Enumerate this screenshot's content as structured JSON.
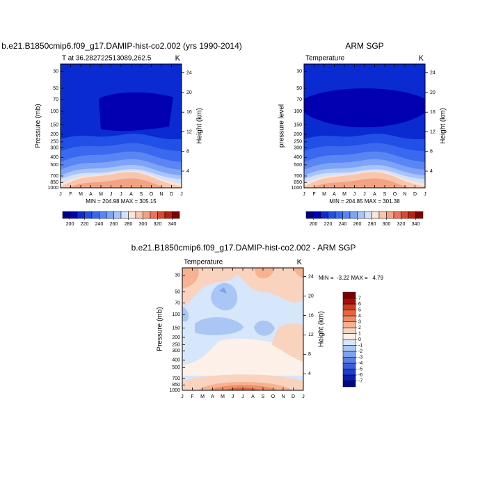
{
  "chart_data": [
    {
      "type": "contour",
      "title": "b.e21.B1850cmip6.f09_g17.DAMIP-hist-co2.002 (yrs 1990-2014)",
      "left_string": "T at 36.282722513089,262.5",
      "right_string": "K",
      "ylabel": "Pressure (mb)",
      "y2label": "Height (km)",
      "categories": [
        "J",
        "F",
        "M",
        "A",
        "M",
        "J",
        "J",
        "A",
        "S",
        "O",
        "N",
        "D",
        "J"
      ],
      "ylim": [
        1000,
        24
      ],
      "log_scale": true,
      "yticks": [
        30,
        50,
        70,
        100,
        150,
        200,
        250,
        300,
        400,
        500,
        700,
        850,
        1000
      ],
      "y2lim": [
        0.6,
        25.8
      ],
      "y2ticks": [
        4,
        8,
        12,
        16,
        20,
        24
      ],
      "stats": "MIN = 204.98 MAX = 305.15",
      "colorbar": {
        "orientation": "horizontal",
        "lim": [
          190,
          350
        ],
        "ticks": [
          200,
          220,
          240,
          260,
          280,
          300,
          320,
          340
        ],
        "colors": [
          "#00007f",
          "#0000b0",
          "#0a2bd1",
          "#2050e6",
          "#3a68ee",
          "#5a86f4",
          "#7ea4f7",
          "#a8c4fa",
          "#d2e2fc",
          "#fbe4d6",
          "#f8c6ad",
          "#f3a283",
          "#e8755a",
          "#d84a30",
          "#b8200f",
          "#820000"
        ]
      }
    },
    {
      "type": "contour",
      "title": "ARM SGP",
      "left_string": "Temperature",
      "right_string": "K",
      "ylabel": "pressure level",
      "y2label": "Height (km)",
      "categories": [
        "J",
        "F",
        "M",
        "A",
        "M",
        "J",
        "J",
        "A",
        "S",
        "O",
        "N",
        "D",
        "J"
      ],
      "ylim": [
        1000,
        24
      ],
      "log_scale": true,
      "yticks": [
        30,
        50,
        70,
        100,
        150,
        200,
        250,
        300,
        400,
        500,
        700,
        850,
        1000
      ],
      "y2lim": [
        0.6,
        25.8
      ],
      "y2ticks": [
        4,
        8,
        12,
        16,
        20,
        24
      ],
      "stats": "MIN = 204.85 MAX = 301.38",
      "colorbar": {
        "orientation": "horizontal",
        "lim": [
          190,
          350
        ],
        "ticks": [
          200,
          220,
          240,
          260,
          280,
          300,
          320,
          340
        ],
        "colors": [
          "#00007f",
          "#0000b0",
          "#0a2bd1",
          "#2050e6",
          "#3a68ee",
          "#5a86f4",
          "#7ea4f7",
          "#a8c4fa",
          "#d2e2fc",
          "#fbe4d6",
          "#f8c6ad",
          "#f3a283",
          "#e8755a",
          "#d84a30",
          "#b8200f",
          "#820000"
        ]
      }
    },
    {
      "type": "contour-diff",
      "title": "b.e21.B1850cmip6.f09_g17.DAMIP-hist-co2.002 - ARM SGP",
      "left_string": "Temperature",
      "right_string": "K",
      "ylabel": "Pressure (mb)",
      "y2label": "Height (km)",
      "categories": [
        "J",
        "F",
        "M",
        "A",
        "M",
        "J",
        "J",
        "A",
        "S",
        "O",
        "N",
        "D",
        "J"
      ],
      "ylim": [
        1000,
        24
      ],
      "log_scale": true,
      "yticks": [
        30,
        50,
        70,
        100,
        150,
        200,
        250,
        300,
        400,
        500,
        700,
        850,
        1000
      ],
      "y2lim": [
        0.6,
        25.8
      ],
      "y2ticks": [
        4,
        8,
        12,
        16,
        20,
        24
      ],
      "stats": "MIN =  -3.22 MAX =   4.79",
      "colorbar": {
        "orientation": "vertical",
        "lim": [
          -8,
          8
        ],
        "ticks": [
          -7,
          -6,
          -5,
          -4,
          -3,
          -2,
          -1,
          0,
          1,
          2,
          3,
          4,
          5,
          6,
          7
        ],
        "colors": [
          "#000a80",
          "#0a1eb0",
          "#1e3ecc",
          "#3a5ede",
          "#5a80e6",
          "#7ea2ee",
          "#aac6f4",
          "#d6e6fb",
          "#fdf0e8",
          "#fad3bf",
          "#f7b292",
          "#f28c64",
          "#e8643c",
          "#d23a1e",
          "#a80c0c",
          "#7a0000"
        ]
      }
    }
  ]
}
